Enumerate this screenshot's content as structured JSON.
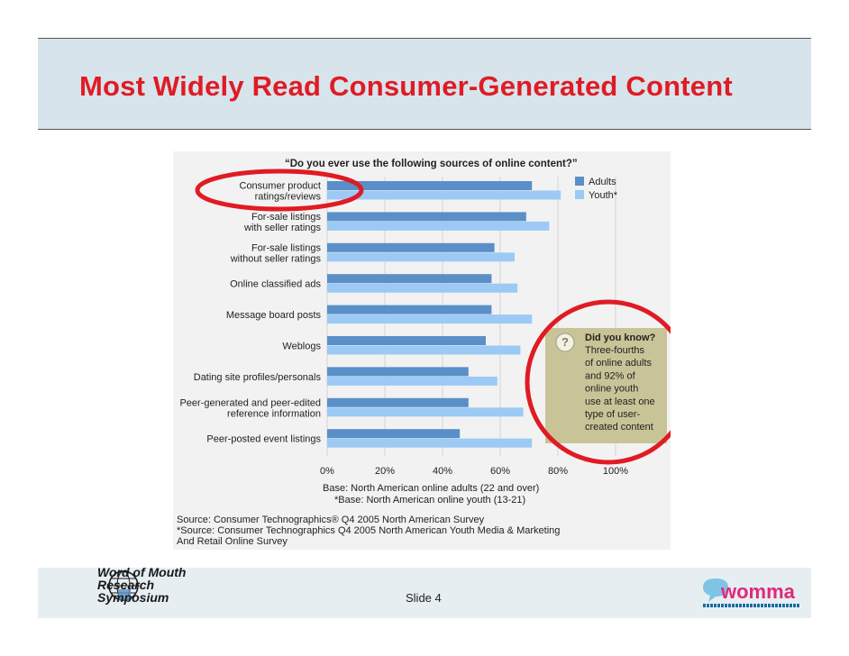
{
  "slide": {
    "title": "Most Widely Read Consumer-Generated Content",
    "slide_number": "Slide 4",
    "logo_left_lines": [
      "Word of Mouth",
      "Research",
      "Symposium"
    ],
    "logo_right": "womma",
    "colors": {
      "title_red": "#e01b24",
      "adults_blue": "#5a8fc8",
      "youth_blue": "#9ccaf4",
      "callout_bg": "#c8c497",
      "circle_red": "#e01b24"
    }
  },
  "chart_data": {
    "type": "bar",
    "orientation": "horizontal",
    "title": "“Do you ever use the following sources of online content?”",
    "categories": [
      [
        "Consumer product",
        "ratings/reviews"
      ],
      [
        "For-sale listings",
        "with seller ratings"
      ],
      [
        "For-sale listings",
        "without seller ratings"
      ],
      [
        "Online classified ads"
      ],
      [
        "Message board posts"
      ],
      [
        "Weblogs"
      ],
      [
        "Dating site profiles/personals"
      ],
      [
        "Peer-generated and peer-edited",
        "reference information"
      ],
      [
        "Peer-posted event listings"
      ]
    ],
    "series": [
      {
        "name": "Adults",
        "values": [
          71,
          69,
          58,
          57,
          57,
          55,
          49,
          49,
          46
        ]
      },
      {
        "name": "Youth*",
        "values": [
          81,
          77,
          65,
          66,
          71,
          67,
          59,
          68,
          71
        ]
      }
    ],
    "xlim": [
      0,
      100
    ],
    "xticks": [
      "0%",
      "20%",
      "40%",
      "60%",
      "80%",
      "100%"
    ],
    "legend_position": "top-right",
    "grid": "vertical",
    "base_notes": [
      "Base: North American online adults (22 and over)",
      "*Base: North American online youth (13-21)"
    ],
    "sources": [
      "Source: Consumer Technographics® Q4 2005 North American Survey",
      "*Source: Consumer Technographics Q4 2005 North American Youth Media & Marketing",
      "And Retail Online Survey"
    ],
    "callout": {
      "icon": "question-icon",
      "heading": "Did you know?",
      "lines": [
        "Three-fourths",
        "of online adults",
        "and 92% of",
        "online youth",
        "use at least one",
        "type of user-",
        "created content"
      ]
    },
    "annotations": [
      "red-circle-consumer-product-label",
      "red-circle-callout"
    ]
  }
}
